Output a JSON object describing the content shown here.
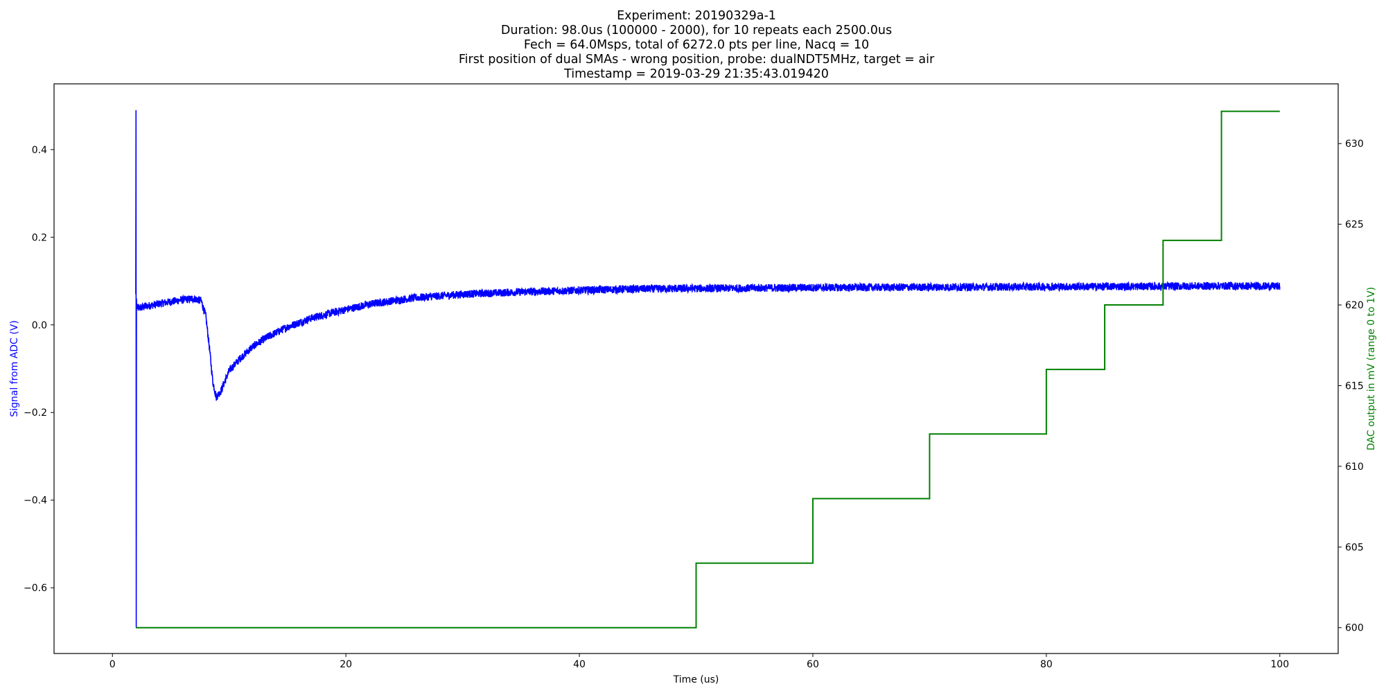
{
  "chart_data": {
    "type": "line",
    "title_lines": [
      "Experiment: 20190329a-1",
      "Duration: 98.0us (100000 - 2000), for 10 repeats each 2500.0us",
      "Fech = 64.0Msps, total of 6272.0 pts per line, Nacq = 10",
      "First position of dual SMAs - wrong position, probe: dualNDT5MHz, target = air",
      "Timestamp = 2019-03-29 21:35:43.019420"
    ],
    "xlabel": "Time (us)",
    "ylabel_left": "Signal from ADC (V)",
    "ylabel_right": "DAC output in mV (range 0 to 1V)",
    "xlim": [
      -5,
      105
    ],
    "ylim_left": [
      -0.75,
      0.55
    ],
    "ylim_right": [
      598.4,
      633.7
    ],
    "x_ticks": [
      0,
      20,
      40,
      60,
      80,
      100
    ],
    "y_ticks_left": [
      -0.6,
      -0.4,
      -0.2,
      0.0,
      0.2,
      0.4
    ],
    "y_ticks_right": [
      600,
      605,
      610,
      615,
      620,
      625,
      630
    ],
    "x_tick_labels": [
      "0",
      "20",
      "40",
      "60",
      "80",
      "100"
    ],
    "y_tick_labels_left": [
      "−0.6",
      "−0.4",
      "−0.2",
      "0.0",
      "0.2",
      "0.4"
    ],
    "y_tick_labels_right": [
      "600",
      "605",
      "610",
      "615",
      "620",
      "625",
      "630"
    ],
    "grid": false,
    "legend": "none",
    "series": [
      {
        "axis": "left",
        "color": "#0000ff",
        "x": [
          2.0,
          2.02,
          2.04,
          2.06,
          2.08,
          2.1,
          2.2,
          3,
          4,
          5,
          6,
          7,
          7.6,
          8.0,
          8.3,
          8.6,
          8.9,
          9.3,
          10,
          11,
          12,
          13,
          14,
          15,
          16,
          17,
          18,
          20,
          22,
          24,
          26,
          28,
          30,
          35,
          40,
          45,
          50,
          60,
          70,
          80,
          90,
          95,
          100
        ],
        "y": [
          0.07,
          0.49,
          -0.69,
          0.06,
          0.04,
          0.04,
          0.038,
          0.043,
          0.048,
          0.053,
          0.057,
          0.06,
          0.055,
          0.02,
          -0.05,
          -0.13,
          -0.165,
          -0.15,
          -0.105,
          -0.075,
          -0.05,
          -0.032,
          -0.018,
          -0.005,
          0.005,
          0.015,
          0.022,
          0.035,
          0.047,
          0.055,
          0.062,
          0.066,
          0.07,
          0.075,
          0.079,
          0.082,
          0.083,
          0.085,
          0.086,
          0.087,
          0.088,
          0.089,
          0.088
        ]
      },
      {
        "axis": "right",
        "color": "#008000",
        "step": "post",
        "x": [
          2,
          50,
          60,
          70,
          80,
          85,
          90,
          95,
          100
        ],
        "y": [
          600,
          604,
          608,
          612,
          616,
          620,
          624,
          632,
          632
        ]
      }
    ]
  }
}
